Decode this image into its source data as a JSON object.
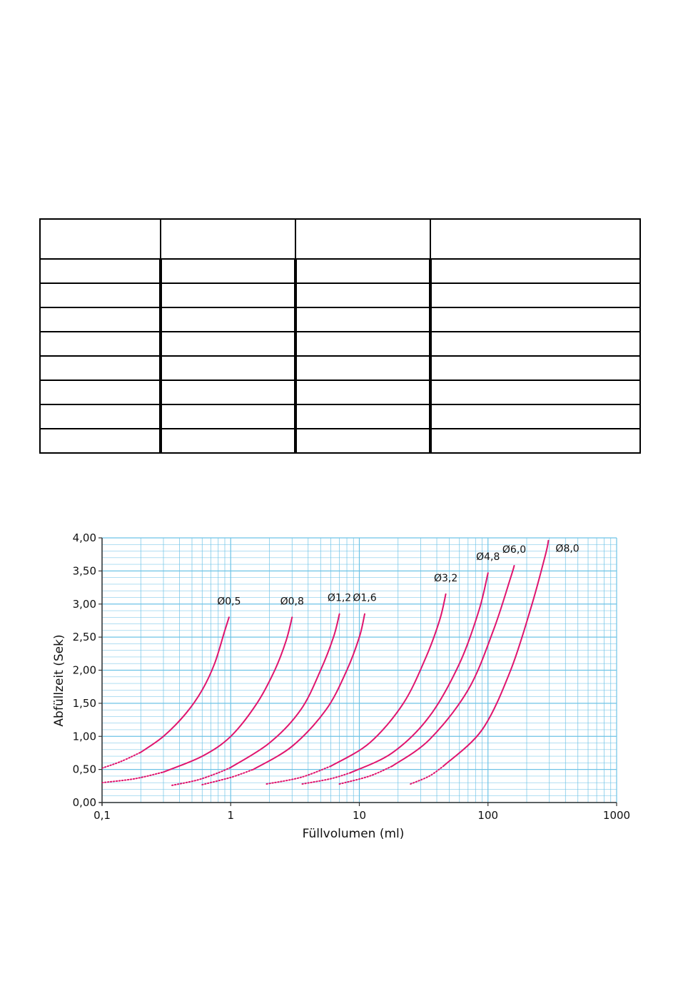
{
  "table": {
    "rows": 9,
    "cols": 4,
    "cells": [
      [
        "",
        "",
        "",
        ""
      ],
      [
        "",
        "",
        "",
        ""
      ],
      [
        "",
        "",
        "",
        ""
      ],
      [
        "",
        "",
        "",
        ""
      ],
      [
        "",
        "",
        "",
        ""
      ],
      [
        "",
        "",
        "",
        ""
      ],
      [
        "",
        "",
        "",
        ""
      ],
      [
        "",
        "",
        "",
        ""
      ],
      [
        "",
        "",
        "",
        ""
      ]
    ]
  },
  "chart_data": {
    "type": "line",
    "title": "",
    "xlabel": "Füllvolumen (ml)",
    "ylabel": "Abfüllzeit (Sek)",
    "x_scale": "log",
    "xlim": [
      0.1,
      1000
    ],
    "ylim": [
      0,
      4
    ],
    "x_ticks": [
      {
        "value": 0.1,
        "label": "0,1"
      },
      {
        "value": 1,
        "label": "1"
      },
      {
        "value": 10,
        "label": "10"
      },
      {
        "value": 100,
        "label": "100"
      },
      {
        "value": 1000,
        "label": "1000"
      }
    ],
    "y_ticks": [
      {
        "value": 0,
        "label": "0,00"
      },
      {
        "value": 0.5,
        "label": "0,50"
      },
      {
        "value": 1,
        "label": "1,00"
      },
      {
        "value": 1.5,
        "label": "1,50"
      },
      {
        "value": 2,
        "label": "2,00"
      },
      {
        "value": 2.5,
        "label": "2,50"
      },
      {
        "value": 3,
        "label": "3,00"
      },
      {
        "value": 3.5,
        "label": "3,50"
      },
      {
        "value": 4,
        "label": "4,00"
      }
    ],
    "grid": true,
    "colors": {
      "curve": "#e0156e",
      "grid": "#6ec3e6",
      "axis": "#333333"
    },
    "series": [
      {
        "name": "Ø0,5",
        "dotted": [
          [
            0.1,
            0.52
          ],
          [
            0.14,
            0.62
          ],
          [
            0.2,
            0.76
          ]
        ],
        "solid": [
          [
            0.2,
            0.76
          ],
          [
            0.3,
            1.0
          ],
          [
            0.45,
            1.35
          ],
          [
            0.6,
            1.7
          ],
          [
            0.75,
            2.1
          ],
          [
            0.9,
            2.6
          ],
          [
            0.97,
            2.8
          ]
        ]
      },
      {
        "name": "Ø0,8",
        "dotted": [
          [
            0.1,
            0.3
          ],
          [
            0.18,
            0.36
          ],
          [
            0.3,
            0.46
          ]
        ],
        "solid": [
          [
            0.3,
            0.46
          ],
          [
            0.6,
            0.7
          ],
          [
            1.0,
            1.0
          ],
          [
            1.6,
            1.5
          ],
          [
            2.2,
            2.0
          ],
          [
            2.7,
            2.45
          ],
          [
            3.0,
            2.8
          ]
        ]
      },
      {
        "name": "Ø1,2",
        "dotted": [
          [
            0.35,
            0.26
          ],
          [
            0.55,
            0.34
          ],
          [
            0.8,
            0.45
          ],
          [
            1.0,
            0.53
          ]
        ],
        "solid": [
          [
            1.0,
            0.53
          ],
          [
            2.0,
            0.9
          ],
          [
            3.5,
            1.4
          ],
          [
            5.0,
            2.0
          ],
          [
            6.3,
            2.5
          ],
          [
            7.0,
            2.85
          ]
        ]
      },
      {
        "name": "Ø1,6",
        "dotted": [
          [
            0.6,
            0.27
          ],
          [
            1.0,
            0.38
          ],
          [
            1.5,
            0.5
          ]
        ],
        "solid": [
          [
            1.5,
            0.5
          ],
          [
            3.0,
            0.85
          ],
          [
            5.5,
            1.4
          ],
          [
            8.0,
            2.0
          ],
          [
            10.0,
            2.5
          ],
          [
            11.0,
            2.85
          ]
        ]
      },
      {
        "name": "Ø3,2",
        "dotted": [
          [
            1.9,
            0.28
          ],
          [
            3.5,
            0.38
          ],
          [
            6.0,
            0.55
          ]
        ],
        "solid": [
          [
            6.0,
            0.55
          ],
          [
            12.0,
            0.9
          ],
          [
            22.0,
            1.5
          ],
          [
            33.0,
            2.2
          ],
          [
            42.0,
            2.75
          ],
          [
            47.0,
            3.15
          ]
        ]
      },
      {
        "name": "Ø4,8",
        "dotted": [
          [
            3.6,
            0.28
          ],
          [
            6.0,
            0.36
          ],
          [
            8.5,
            0.45
          ]
        ],
        "solid": [
          [
            8.5,
            0.45
          ],
          [
            18.0,
            0.75
          ],
          [
            35.0,
            1.3
          ],
          [
            60.0,
            2.1
          ],
          [
            85.0,
            2.9
          ],
          [
            100.0,
            3.47
          ]
        ]
      },
      {
        "name": "Ø6,0",
        "dotted": [
          [
            7.0,
            0.28
          ],
          [
            12.0,
            0.4
          ],
          [
            18.0,
            0.55
          ]
        ],
        "solid": [
          [
            18.0,
            0.55
          ],
          [
            35.0,
            0.95
          ],
          [
            70.0,
            1.7
          ],
          [
            110.0,
            2.6
          ],
          [
            150.0,
            3.4
          ],
          [
            160.0,
            3.58
          ]
        ]
      },
      {
        "name": "Ø8,0",
        "dotted": [
          [
            25.0,
            0.28
          ],
          [
            35.0,
            0.4
          ],
          [
            45.0,
            0.55
          ]
        ],
        "solid": [
          [
            45.0,
            0.55
          ],
          [
            90.0,
            1.1
          ],
          [
            150.0,
            2.0
          ],
          [
            220.0,
            3.0
          ],
          [
            280.0,
            3.75
          ],
          [
            295.0,
            3.96
          ]
        ]
      }
    ]
  }
}
